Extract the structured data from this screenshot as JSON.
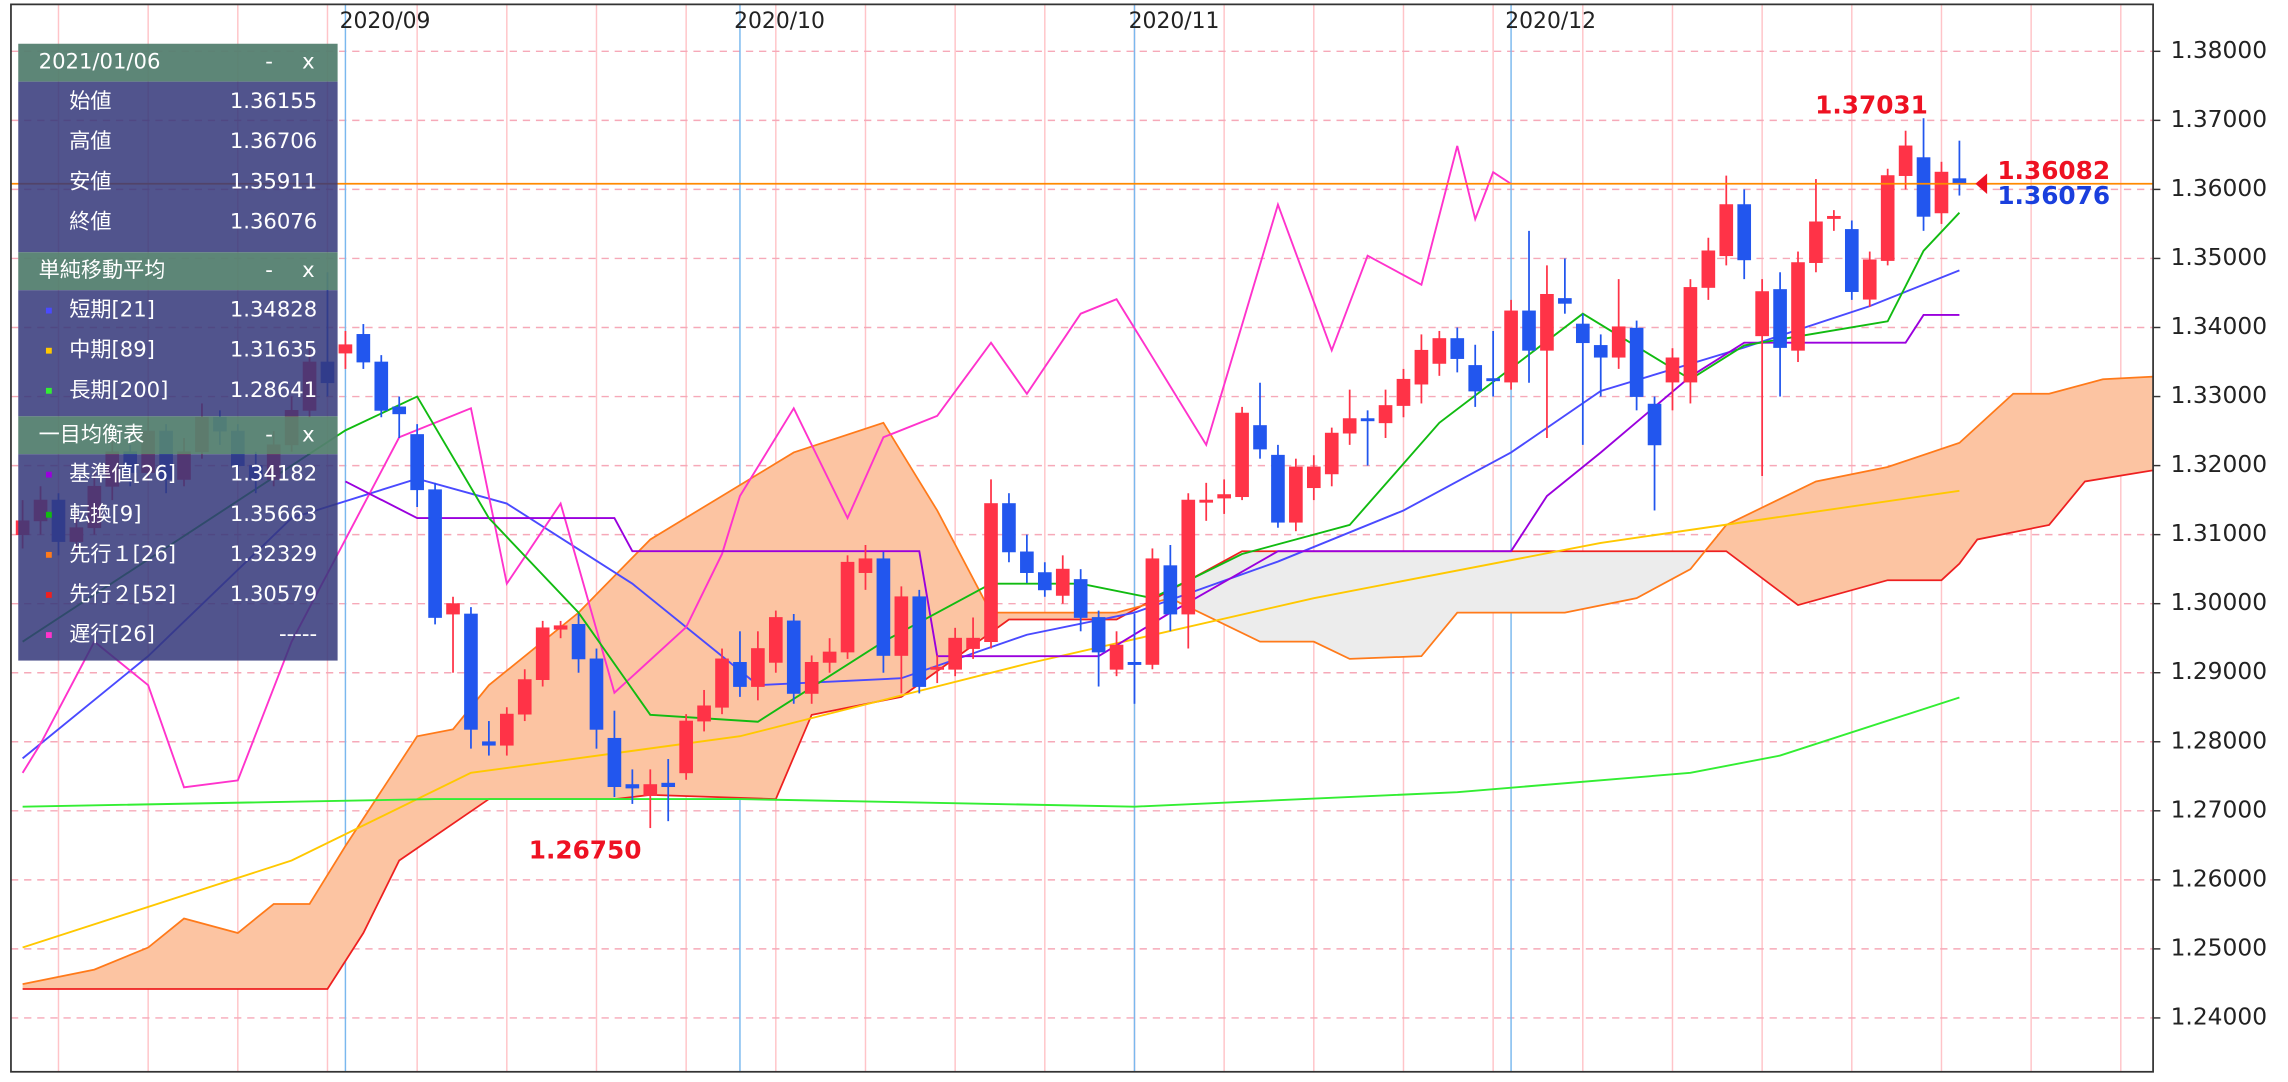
{
  "chart_data": {
    "type": "candlestick",
    "ylim": [
      1.2322,
      1.3868
    ],
    "xlim": [
      -0.65,
      118.8
    ],
    "yticks": [
      {
        "value": 1.24,
        "label": "1.24000"
      },
      {
        "value": 1.25,
        "label": "1.25000"
      },
      {
        "value": 1.26,
        "label": "1.26000"
      },
      {
        "value": 1.27,
        "label": "1.27000"
      },
      {
        "value": 1.28,
        "label": "1.28000"
      },
      {
        "value": 1.29,
        "label": "1.29000"
      },
      {
        "value": 1.3,
        "label": "1.30000"
      },
      {
        "value": 1.31,
        "label": "1.31000"
      },
      {
        "value": 1.32,
        "label": "1.32000"
      },
      {
        "value": 1.33,
        "label": "1.33000"
      },
      {
        "value": 1.34,
        "label": "1.34000"
      },
      {
        "value": 1.35,
        "label": "1.35000"
      },
      {
        "value": 1.36,
        "label": "1.36000"
      },
      {
        "value": 1.37,
        "label": "1.37000"
      },
      {
        "value": 1.38,
        "label": "1.38000"
      }
    ],
    "xticks": [
      {
        "value": 18,
        "label": "2020/09"
      },
      {
        "value": 40,
        "label": "2020/10"
      },
      {
        "value": 62,
        "label": "2020/11"
      },
      {
        "value": 83,
        "label": "2020/12"
      }
    ],
    "grid": true,
    "up_color": "#ff3347",
    "down_color": "#2256ee",
    "candles": [
      [
        1.31,
        1.315,
        1.308,
        1.312
      ],
      [
        1.312,
        1.317,
        1.31,
        1.315
      ],
      [
        1.315,
        1.316,
        1.307,
        1.309
      ],
      [
        1.309,
        1.313,
        1.307,
        1.311
      ],
      [
        1.311,
        1.319,
        1.31,
        1.317
      ],
      [
        1.317,
        1.324,
        1.315,
        1.322
      ],
      [
        1.322,
        1.323,
        1.317,
        1.319
      ],
      [
        1.319,
        1.327,
        1.318,
        1.325
      ],
      [
        1.325,
        1.326,
        1.316,
        1.318
      ],
      [
        1.318,
        1.324,
        1.317,
        1.322
      ],
      [
        1.322,
        1.329,
        1.321,
        1.327
      ],
      [
        1.327,
        1.328,
        1.323,
        1.325
      ],
      [
        1.325,
        1.326,
        1.318,
        1.32
      ],
      [
        1.32,
        1.322,
        1.316,
        1.318
      ],
      [
        1.318,
        1.325,
        1.317,
        1.323
      ],
      [
        1.323,
        1.33,
        1.322,
        1.328
      ],
      [
        1.328,
        1.337,
        1.327,
        1.335
      ],
      [
        1.335,
        1.348,
        1.33,
        1.332
      ],
      [
        1.3363,
        1.3395,
        1.334,
        1.3375
      ],
      [
        1.339,
        1.3405,
        1.334,
        1.335
      ],
      [
        1.335,
        1.336,
        1.327,
        1.328
      ],
      [
        1.3285,
        1.33,
        1.324,
        1.3275
      ],
      [
        1.3245,
        1.326,
        1.314,
        1.3165
      ],
      [
        1.3165,
        1.3175,
        1.297,
        1.298
      ],
      [
        1.2985,
        1.301,
        1.29,
        1.3
      ],
      [
        1.2985,
        1.2995,
        1.279,
        1.2818
      ],
      [
        1.28,
        1.283,
        1.278,
        1.2795
      ],
      [
        1.2795,
        1.285,
        1.278,
        1.284
      ],
      [
        1.284,
        1.2905,
        1.283,
        1.289
      ],
      [
        1.289,
        1.2975,
        1.288,
        1.2965
      ],
      [
        1.2963,
        1.2975,
        1.295,
        1.2968
      ],
      [
        1.297,
        1.2985,
        1.29,
        1.292
      ],
      [
        1.292,
        1.2935,
        1.279,
        1.2818
      ],
      [
        1.2805,
        1.2845,
        1.272,
        1.2735
      ],
      [
        1.2738,
        1.276,
        1.271,
        1.2733
      ],
      [
        1.2722,
        1.276,
        1.2675,
        1.2738
      ],
      [
        1.274,
        1.2775,
        1.2685,
        1.2735
      ],
      [
        1.2755,
        1.284,
        1.2745,
        1.283
      ],
      [
        1.283,
        1.2875,
        1.2815,
        1.2852
      ],
      [
        1.285,
        1.2935,
        1.284,
        1.292
      ],
      [
        1.2915,
        1.296,
        1.2865,
        1.288
      ],
      [
        1.288,
        1.296,
        1.286,
        1.2935
      ],
      [
        1.2915,
        1.299,
        1.29,
        1.298
      ],
      [
        1.2975,
        1.2985,
        1.2855,
        1.287
      ],
      [
        1.287,
        1.2925,
        1.2855,
        1.2915
      ],
      [
        1.2915,
        1.295,
        1.29,
        1.293
      ],
      [
        1.293,
        1.307,
        1.292,
        1.306
      ],
      [
        1.3045,
        1.3085,
        1.302,
        1.3065
      ],
      [
        1.3065,
        1.3075,
        1.29,
        1.2925
      ],
      [
        1.2925,
        1.3025,
        1.287,
        1.301
      ],
      [
        1.301,
        1.302,
        1.287,
        1.288
      ],
      [
        1.2905,
        1.2925,
        1.2885,
        1.2908
      ],
      [
        1.2905,
        1.2965,
        1.2895,
        1.295
      ],
      [
        1.2935,
        1.298,
        1.292,
        1.295
      ],
      [
        1.2945,
        1.318,
        1.2935,
        1.3145
      ],
      [
        1.3145,
        1.316,
        1.306,
        1.3075
      ],
      [
        1.3075,
        1.31,
        1.303,
        1.3045
      ],
      [
        1.3045,
        1.306,
        1.301,
        1.302
      ],
      [
        1.3012,
        1.307,
        1.3,
        1.305
      ],
      [
        1.3035,
        1.305,
        1.296,
        1.298
      ],
      [
        1.298,
        1.299,
        1.288,
        1.293
      ],
      [
        1.2905,
        1.296,
        1.2895,
        1.294
      ],
      [
        1.2915,
        1.2985,
        1.2855,
        1.2912
      ],
      [
        1.2912,
        1.308,
        1.2905,
        1.3065
      ],
      [
        1.3055,
        1.3085,
        1.296,
        1.2985
      ],
      [
        1.2985,
        1.316,
        1.2935,
        1.315
      ],
      [
        1.3148,
        1.3175,
        1.312,
        1.315
      ],
      [
        1.3153,
        1.318,
        1.313,
        1.3158
      ],
      [
        1.3155,
        1.3285,
        1.315,
        1.3276
      ],
      [
        1.3258,
        1.332,
        1.321,
        1.3224
      ],
      [
        1.3215,
        1.323,
        1.311,
        1.3118
      ],
      [
        1.3118,
        1.321,
        1.3105,
        1.3198
      ],
      [
        1.3168,
        1.3215,
        1.315,
        1.3198
      ],
      [
        1.3188,
        1.3255,
        1.317,
        1.3247
      ],
      [
        1.3247,
        1.331,
        1.323,
        1.3268
      ],
      [
        1.3268,
        1.328,
        1.32,
        1.3265
      ],
      [
        1.3262,
        1.331,
        1.324,
        1.3287
      ],
      [
        1.3287,
        1.334,
        1.327,
        1.3325
      ],
      [
        1.3318,
        1.339,
        1.329,
        1.3367
      ],
      [
        1.3348,
        1.3395,
        1.333,
        1.3384
      ],
      [
        1.3384,
        1.34,
        1.3335,
        1.3355
      ],
      [
        1.3345,
        1.3375,
        1.3285,
        1.3308
      ],
      [
        1.3326,
        1.3395,
        1.33,
        1.3324
      ],
      [
        1.3321,
        1.344,
        1.331,
        1.3424
      ],
      [
        1.3424,
        1.354,
        1.332,
        1.3367
      ],
      [
        1.3367,
        1.349,
        1.324,
        1.3448
      ],
      [
        1.3442,
        1.35,
        1.342,
        1.3435
      ],
      [
        1.3405,
        1.342,
        1.323,
        1.3378
      ],
      [
        1.3374,
        1.339,
        1.33,
        1.3357
      ],
      [
        1.3357,
        1.347,
        1.334,
        1.3401
      ],
      [
        1.3399,
        1.341,
        1.328,
        1.33
      ],
      [
        1.3289,
        1.33,
        1.3135,
        1.323
      ],
      [
        1.3321,
        1.337,
        1.328,
        1.3356
      ],
      [
        1.3321,
        1.347,
        1.329,
        1.3458
      ],
      [
        1.3458,
        1.353,
        1.344,
        1.3511
      ],
      [
        1.3504,
        1.362,
        1.349,
        1.3578
      ],
      [
        1.3578,
        1.36,
        1.347,
        1.3498
      ],
      [
        1.3388,
        1.347,
        1.3185,
        1.3452
      ],
      [
        1.3455,
        1.348,
        1.33,
        1.3371
      ],
      [
        1.3367,
        1.351,
        1.335,
        1.3494
      ],
      [
        1.3494,
        1.3615,
        1.348,
        1.3553
      ],
      [
        1.3558,
        1.357,
        1.354,
        1.3561
      ],
      [
        1.3542,
        1.3555,
        1.344,
        1.3452
      ],
      [
        1.3441,
        1.351,
        1.343,
        1.3498
      ],
      [
        1.3497,
        1.363,
        1.349,
        1.362
      ],
      [
        1.362,
        1.3685,
        1.36,
        1.3663
      ],
      [
        1.3646,
        1.37031,
        1.354,
        1.3561
      ],
      [
        1.3566,
        1.364,
        1.355,
        1.3625
      ],
      [
        1.36155,
        1.36706,
        1.35911,
        1.36076
      ]
    ],
    "moving_averages": {
      "title": "単純移動平均",
      "series": [
        {
          "name": "短期[21]",
          "color": "#4a4aff",
          "x": [
            0,
            7,
            15,
            22,
            27,
            34,
            41,
            49,
            56,
            62,
            70,
            77,
            83,
            88,
            96,
            103,
            108
          ],
          "values": [
            1.2776,
            1.2924,
            1.3124,
            1.3181,
            1.3145,
            1.3029,
            1.2882,
            1.2892,
            1.2955,
            1.2987,
            1.3061,
            1.3135,
            1.3219,
            1.3308,
            1.3371,
            1.3431,
            1.34828
          ]
        },
        {
          "name": "中期[89]",
          "color": "#ffc800",
          "x": [
            0,
            15,
            25,
            40,
            56,
            72,
            88,
            108
          ],
          "values": [
            1.2502,
            1.2628,
            1.2755,
            1.2808,
            1.2913,
            1.3008,
            1.3088,
            1.31635
          ]
        },
        {
          "name": "長期[200]",
          "color": "#33ee33",
          "x": [
            0,
            23,
            40,
            62,
            80,
            93,
            98,
            108
          ],
          "values": [
            1.2706,
            1.2717,
            1.2717,
            1.2706,
            1.2727,
            1.2755,
            1.278,
            1.28641
          ]
        }
      ]
    },
    "ichimoku": {
      "title": "一目均衡表",
      "series": [
        {
          "name": "基準値[26]",
          "color": "#9a00dd",
          "x": [
            18,
            22,
            33,
            34,
            50,
            51,
            60,
            64,
            70,
            83,
            85,
            88,
            93,
            96,
            105,
            106,
            108
          ],
          "values": [
            1.3177,
            1.3124,
            1.3124,
            1.3076,
            1.3076,
            1.2924,
            1.2924,
            1.2987,
            1.3076,
            1.3076,
            1.3156,
            1.3219,
            1.3329,
            1.3378,
            1.3378,
            1.34182,
            1.34182
          ]
        },
        {
          "name": "転換[9]",
          "color": "#11bb11",
          "x": [
            0,
            18,
            22,
            26,
            31,
            35,
            41,
            48,
            54,
            59,
            63,
            68,
            74,
            79,
            87,
            93,
            96,
            104,
            106,
            108
          ],
          "values": [
            1.2945,
            1.3251,
            1.33,
            1.3124,
            1.2987,
            1.2839,
            1.2829,
            1.2945,
            1.3029,
            1.3029,
            1.3008,
            1.3072,
            1.3114,
            1.3262,
            1.342,
            1.3325,
            1.3374,
            1.3409,
            1.3511,
            1.35663
          ]
        },
        {
          "name": "先行１[26]",
          "color": "#ff7a1a",
          "x": [
            0,
            4,
            7,
            8,
            9,
            12,
            14,
            16,
            18,
            22,
            24,
            26,
            31,
            35,
            39,
            43,
            48,
            51,
            54,
            61,
            64,
            69,
            72,
            74,
            78,
            80,
            86,
            90,
            93,
            95,
            100,
            104,
            108,
            111,
            113,
            116,
            119
          ],
          "values": [
            1.2449,
            1.247,
            1.2502,
            1.2523,
            1.2544,
            1.2523,
            1.2565,
            1.2565,
            1.2649,
            1.2808,
            1.2818,
            1.2882,
            1.2987,
            1.3093,
            1.3156,
            1.3219,
            1.3262,
            1.3135,
            1.2987,
            1.2987,
            1.3008,
            1.2945,
            1.2945,
            1.292,
            1.2924,
            1.2987,
            1.2987,
            1.3008,
            1.305,
            1.3114,
            1.3177,
            1.3198,
            1.32329,
            1.3304,
            1.3304,
            1.3325,
            1.3329
          ]
        },
        {
          "name": "先行２[52]",
          "color": "#ee2020",
          "x": [
            0,
            17,
            19,
            21,
            26,
            33,
            35,
            42,
            44,
            49,
            55,
            61,
            68,
            95,
            99,
            104,
            107,
            108,
            109,
            113,
            115,
            119
          ],
          "values": [
            1.2442,
            1.2442,
            1.2523,
            1.2628,
            1.2717,
            1.2717,
            1.2723,
            1.2717,
            1.2839,
            1.2865,
            1.2977,
            1.2977,
            1.3076,
            1.3076,
            1.2998,
            1.3034,
            1.3034,
            1.30579,
            1.3093,
            1.3114,
            1.3177,
            1.3194
          ]
        },
        {
          "name": "遅行[26]",
          "color": "#ff33cc",
          "current_label": "-----",
          "x": [
            0,
            1,
            4,
            7,
            9,
            12,
            15,
            18,
            21,
            25,
            27,
            30,
            33,
            37,
            39,
            40,
            43,
            46,
            48,
            51,
            54,
            56,
            59,
            61,
            63,
            66,
            70,
            73,
            75,
            78,
            80,
            81,
            82,
            83
          ],
          "values": [
            1.2755,
            1.2797,
            1.2945,
            1.2882,
            1.2734,
            1.2744,
            1.2945,
            1.3093,
            1.3241,
            1.3283,
            1.3029,
            1.3145,
            1.2871,
            1.2966,
            1.3072,
            1.3156,
            1.3283,
            1.3124,
            1.3241,
            1.3272,
            1.3378,
            1.3304,
            1.342,
            1.3441,
            1.3357,
            1.323,
            1.3578,
            1.3367,
            1.3504,
            1.3462,
            1.3663,
            1.3557,
            1.3625,
            1.3608
          ]
        }
      ]
    },
    "current_price": 1.36082,
    "current_price_label": "1.36082",
    "annotations": [
      {
        "index": 106,
        "value": 1.37031,
        "label": "1.37031"
      },
      {
        "index": 35,
        "value": 1.2675,
        "label": "1.26750"
      }
    ],
    "panel": {
      "date": "2021/01/06",
      "controls": [
        "-",
        "x"
      ],
      "ohlc_labels": [
        "始値",
        "高値",
        "安値",
        "終値"
      ]
    }
  }
}
